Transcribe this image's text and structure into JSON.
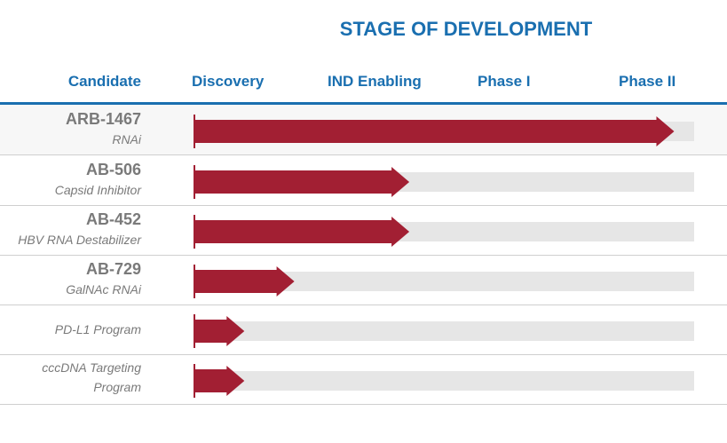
{
  "chart_data": {
    "type": "bar",
    "title": "STAGE OF DEVELOPMENT",
    "candidate_header": "Candidate",
    "stages": [
      "Discovery",
      "IND Enabling",
      "Phase I",
      "Phase II"
    ],
    "items": [
      {
        "name": "ARB-1467",
        "description": "RNAi",
        "progress": 0.96
      },
      {
        "name": "AB-506",
        "description": "Capsid Inhibitor",
        "progress": 0.43
      },
      {
        "name": "AB-452",
        "description": "HBV RNA Destabilizer",
        "progress": 0.43
      },
      {
        "name": "AB-729",
        "description": "GalNAc RNAi",
        "progress": 0.2
      },
      {
        "name": "",
        "description": "PD-L1 Program",
        "progress": 0.1
      },
      {
        "name": "",
        "description": "cccDNA Targeting Program",
        "description_lines": [
          "cccDNA Targeting",
          "Program"
        ],
        "progress": 0.1
      }
    ],
    "colors": {
      "bar": "#a21f33",
      "track": "#e6e6e6",
      "header": "#1a6fb0",
      "label": "#7a7a7a"
    }
  }
}
